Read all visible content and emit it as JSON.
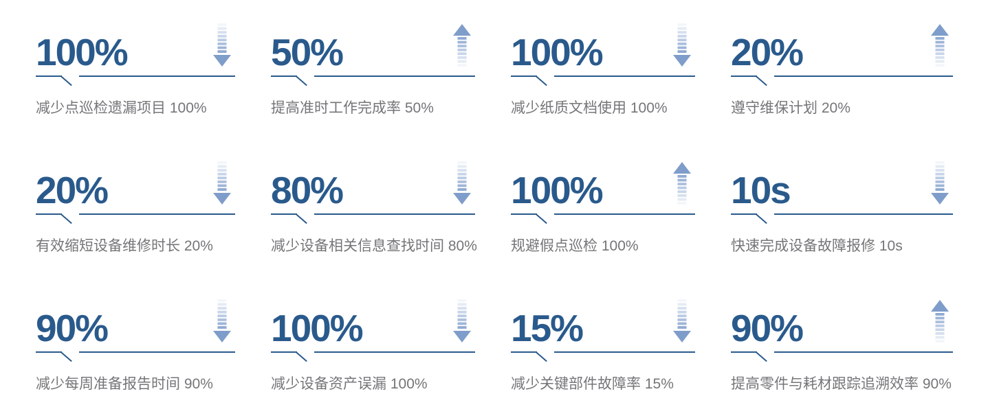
{
  "page": {
    "background": "#ffffff"
  },
  "colors": {
    "accent_blue": "#2a5a8c",
    "label_gray": "#757578",
    "arrow_head": "#7f9dca",
    "arrow_shaft_dark": "#8fa9d2",
    "arrow_shaft_light": "#f3f6fa"
  },
  "stats": [
    {
      "value": "100%",
      "label": "减少点巡检遗漏项目 100%",
      "trend": "down"
    },
    {
      "value": "50%",
      "label": "提高准时工作完成率 50%",
      "trend": "up"
    },
    {
      "value": "100%",
      "label": "减少纸质文档使用 100%",
      "trend": "down"
    },
    {
      "value": "20%",
      "label": "遵守维保计划 20%",
      "trend": "up"
    },
    {
      "value": "20%",
      "label": "有效缩短设备维修时长 20%",
      "trend": "down"
    },
    {
      "value": "80%",
      "label": "减少设备相关信息查找时间 80%",
      "trend": "down"
    },
    {
      "value": "100%",
      "label": "规避假点巡检 100%",
      "trend": "up"
    },
    {
      "value": "10s",
      "label": "快速完成设备故障报修 10s",
      "trend": "down"
    },
    {
      "value": "90%",
      "label": "减少每周准备报告时间 90%",
      "trend": "down"
    },
    {
      "value": "100%",
      "label": "减少设备资产误漏 100%",
      "trend": "down"
    },
    {
      "value": "15%",
      "label": "减少关键部件故障率 15%",
      "trend": "down"
    },
    {
      "value": "90%",
      "label": "提高零件与耗材跟踪追溯效率 90%",
      "trend": "up"
    }
  ]
}
